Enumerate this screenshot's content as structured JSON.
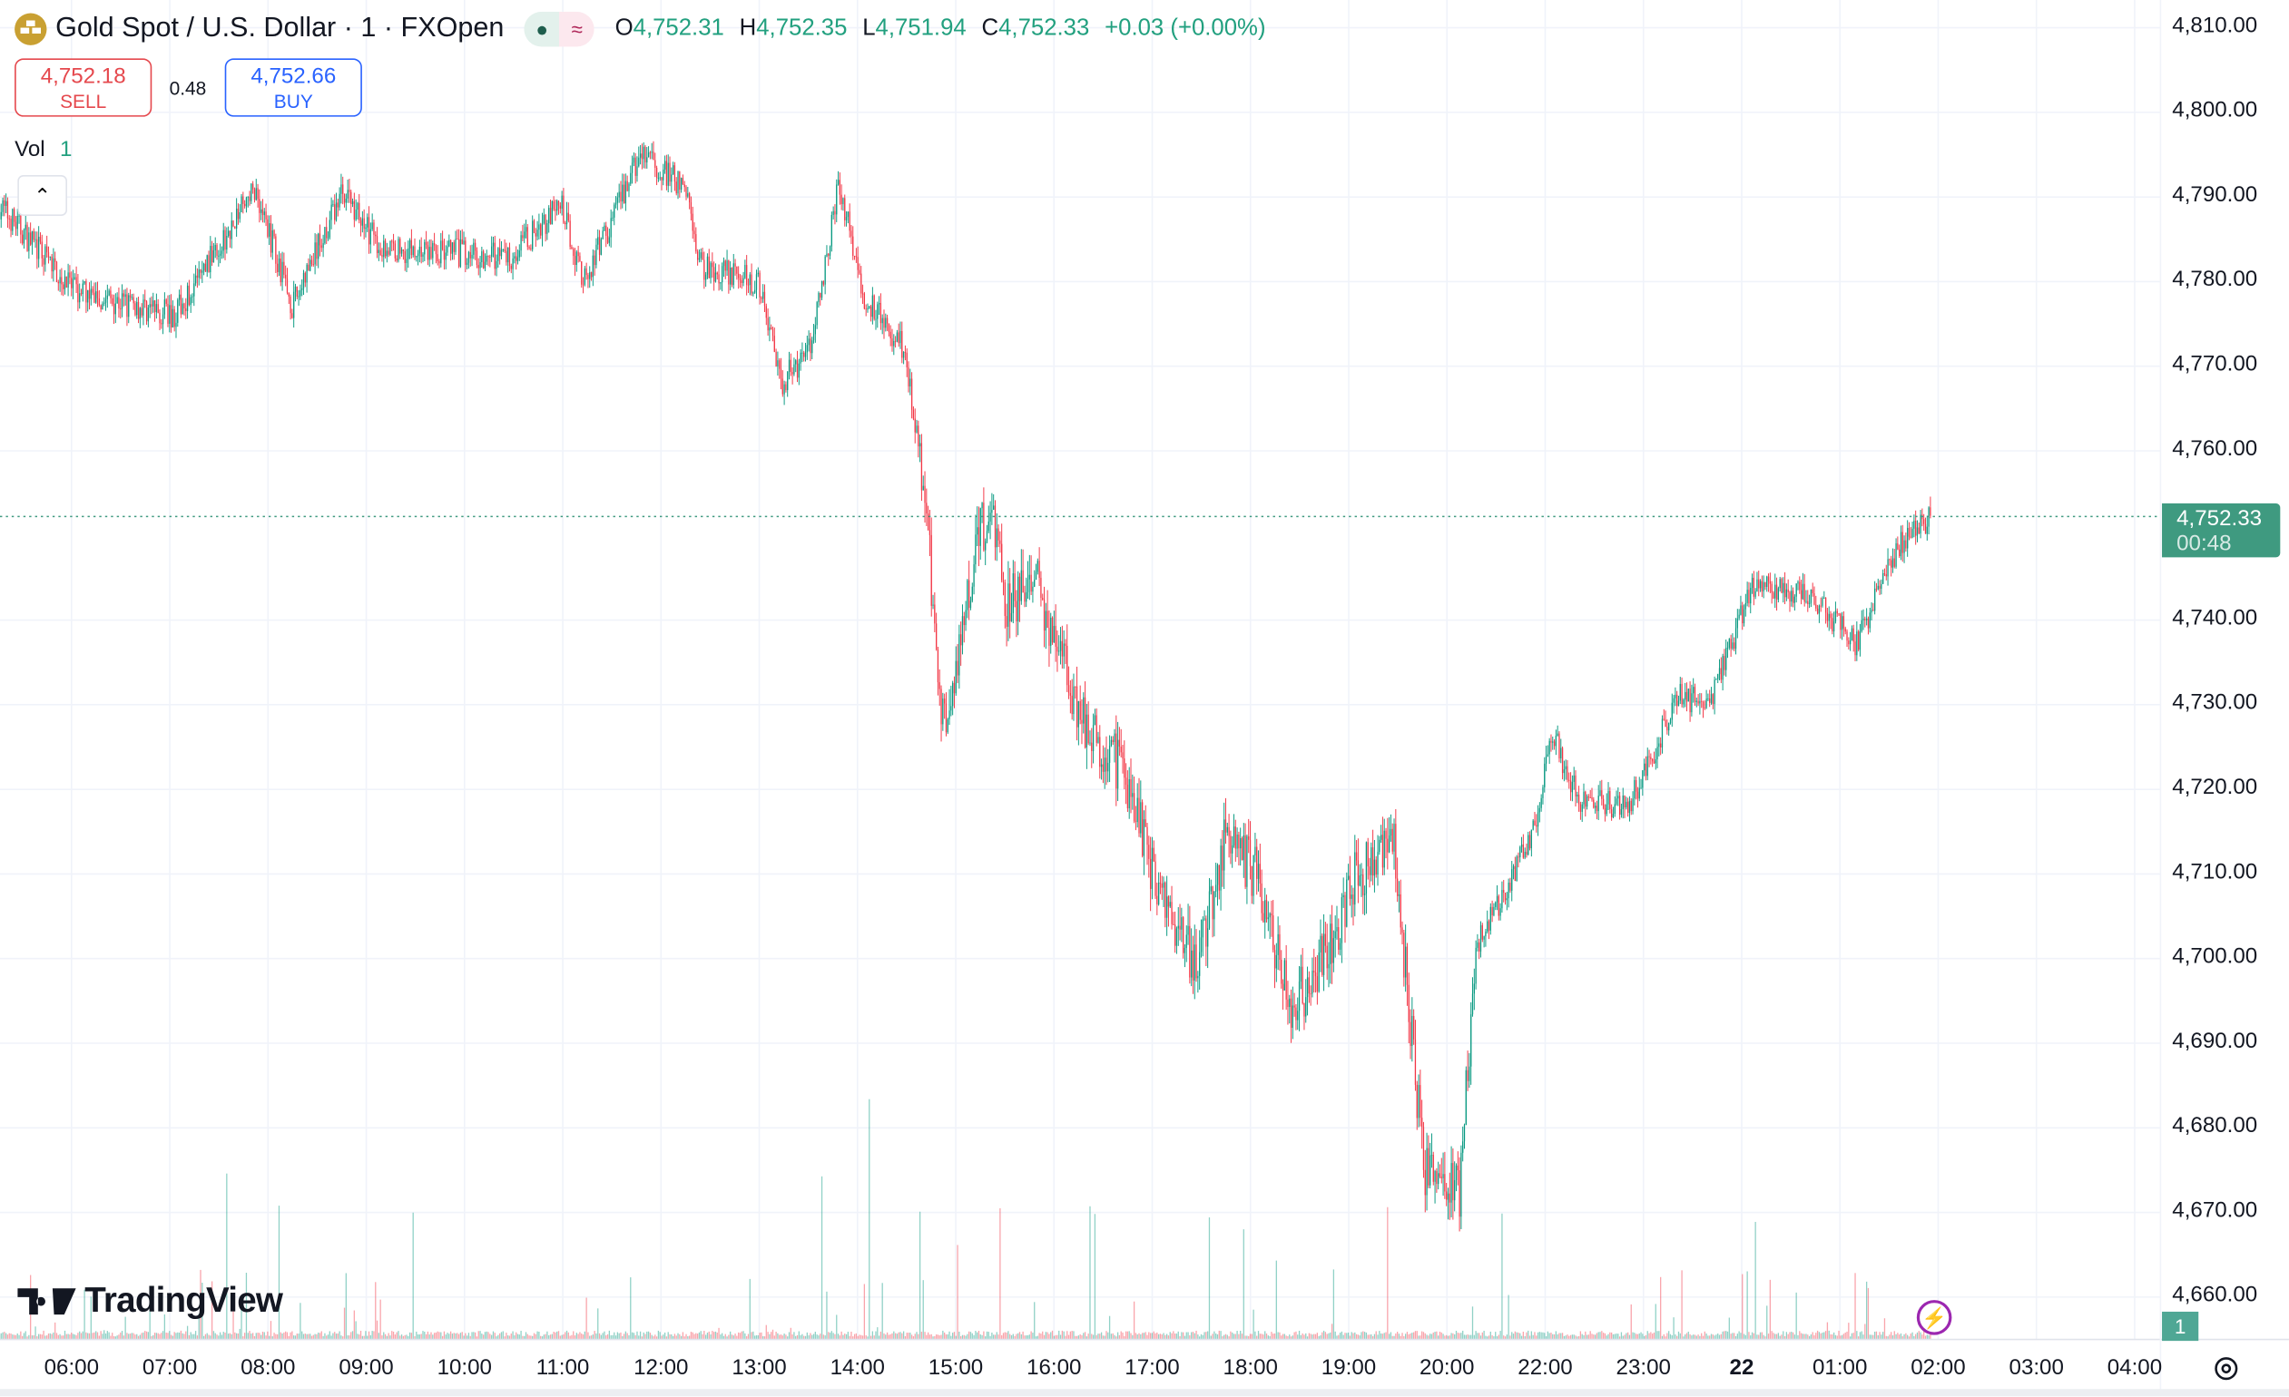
{
  "header": {
    "symbol_title": "Gold Spot / U.S. Dollar · 1 · FXOpen",
    "status_icons": [
      "market-open-dot-icon",
      "delayed-data-icon"
    ],
    "ohlc": {
      "o_label": "O",
      "o": "4,752.31",
      "h_label": "H",
      "h": "4,752.35",
      "l_label": "L",
      "l": "4,751.94",
      "c_label": "C",
      "c": "4,752.33",
      "change": "+0.03 (+0.00%)"
    }
  },
  "trade": {
    "sell_price": "4,752.18",
    "sell_label": "SELL",
    "spread": "0.48",
    "buy_price": "4,752.66",
    "buy_label": "BUY"
  },
  "volume": {
    "label": "Vol",
    "value": "1",
    "axis_value": "1"
  },
  "price_axis": {
    "ticks": [
      "4,810.00",
      "4,800.00",
      "4,790.00",
      "4,780.00",
      "4,770.00",
      "4,760.00",
      "4,740.00",
      "4,730.00",
      "4,720.00",
      "4,710.00",
      "4,700.00",
      "4,690.00",
      "4,680.00",
      "4,670.00",
      "4,660.00"
    ],
    "current_price": "4,752.33",
    "countdown": "00:48"
  },
  "time_axis": {
    "ticks": [
      "06:00",
      "07:00",
      "08:00",
      "09:00",
      "10:00",
      "11:00",
      "12:00",
      "13:00",
      "14:00",
      "15:00",
      "16:00",
      "17:00",
      "18:00",
      "19:00",
      "20:00",
      "22:00",
      "23:00",
      "22",
      "01:00",
      "02:00",
      "03:00",
      "04:00"
    ]
  },
  "branding": {
    "logo": "TradingView"
  },
  "colors": {
    "up": "#089981",
    "down": "#f23645",
    "buy": "#2962ff",
    "sell": "#e5484d",
    "last_price": "#3f9a80",
    "accent_purple": "#9c27b0",
    "gold": "#c9a032"
  },
  "chart_data": {
    "type": "candlestick",
    "interval": "1 minute",
    "price_range": [
      4655,
      4812
    ],
    "grid": true,
    "price_path": [
      [
        "05:16",
        4789
      ],
      [
        "06:01",
        4779
      ],
      [
        "07:03",
        4776
      ],
      [
        "07:52",
        4791
      ],
      [
        "08:15",
        4777
      ],
      [
        "08:46",
        4791
      ],
      [
        "09:08",
        4784
      ],
      [
        "10:28",
        4783
      ],
      [
        "10:59",
        4789
      ],
      [
        "11:13",
        4780
      ],
      [
        "11:48",
        4795
      ],
      [
        "12:15",
        4791
      ],
      [
        "12:24",
        4782
      ],
      [
        "12:59",
        4780
      ],
      [
        "13:13",
        4768
      ],
      [
        "13:31",
        4772
      ],
      [
        "13:49",
        4792
      ],
      [
        "14:02",
        4779
      ],
      [
        "14:29",
        4772
      ],
      [
        "14:42",
        4753
      ],
      [
        "14:51",
        4727
      ],
      [
        "15:04",
        4739
      ],
      [
        "15:13",
        4749
      ],
      [
        "15:22",
        4754
      ],
      [
        "15:31",
        4742
      ],
      [
        "15:49",
        4745
      ],
      [
        "16:16",
        4729
      ],
      [
        "16:43",
        4722
      ],
      [
        "17:01",
        4710
      ],
      [
        "17:27",
        4699
      ],
      [
        "17:45",
        4715
      ],
      [
        "18:03",
        4710
      ],
      [
        "18:25",
        4694
      ],
      [
        "18:48",
        4701
      ],
      [
        "19:05",
        4710
      ],
      [
        "19:28",
        4713
      ],
      [
        "19:46",
        4675
      ],
      [
        "20:08",
        4672
      ],
      [
        "20:17",
        4701
      ],
      [
        "20:53",
        4715
      ],
      [
        "+22:04",
        4727
      ],
      [
        "+22:20",
        4719
      ],
      [
        "+22:51",
        4718
      ],
      [
        "+23:22",
        4731
      ],
      [
        "+23:40",
        4730
      ],
      [
        "++00:07",
        4744
      ],
      [
        "++00:43",
        4743
      ],
      [
        "++01:10",
        4737
      ],
      [
        "++01:36",
        4749
      ],
      [
        "++01:56",
        4752.33
      ]
    ]
  }
}
